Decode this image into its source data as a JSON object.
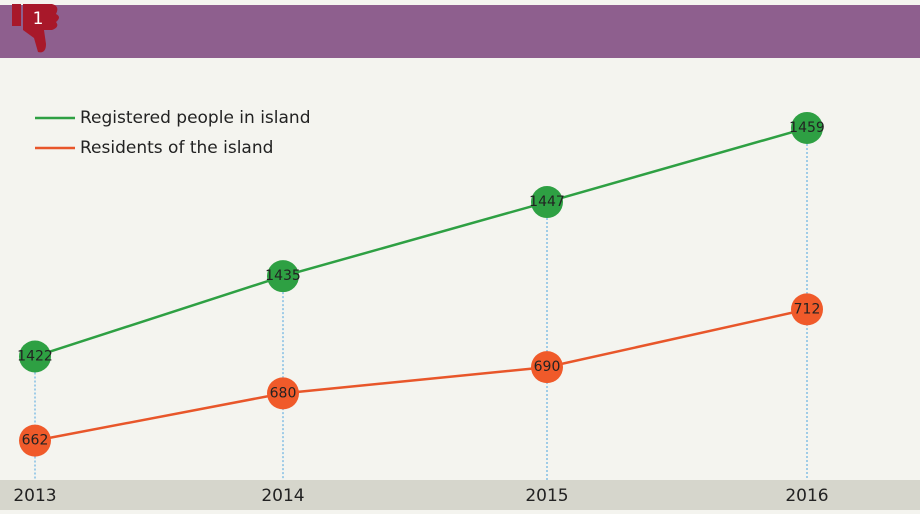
{
  "badge": "1",
  "chart_data": {
    "type": "line",
    "categories": [
      "2013",
      "2014",
      "2015",
      "2016"
    ],
    "legend": "top-left",
    "series": [
      {
        "name": "Registered people in island",
        "color": "#2ea043",
        "marker_color": "#2ea043",
        "ylim": [
          1402,
          1470
        ],
        "values": [
          1422,
          1435,
          1447,
          1459
        ]
      },
      {
        "name": "Residents of the island",
        "color": "#e8562a",
        "marker_color": "#f05a2a",
        "ylim": [
          647,
          807
        ],
        "values": [
          662,
          680,
          690,
          712
        ]
      }
    ]
  }
}
